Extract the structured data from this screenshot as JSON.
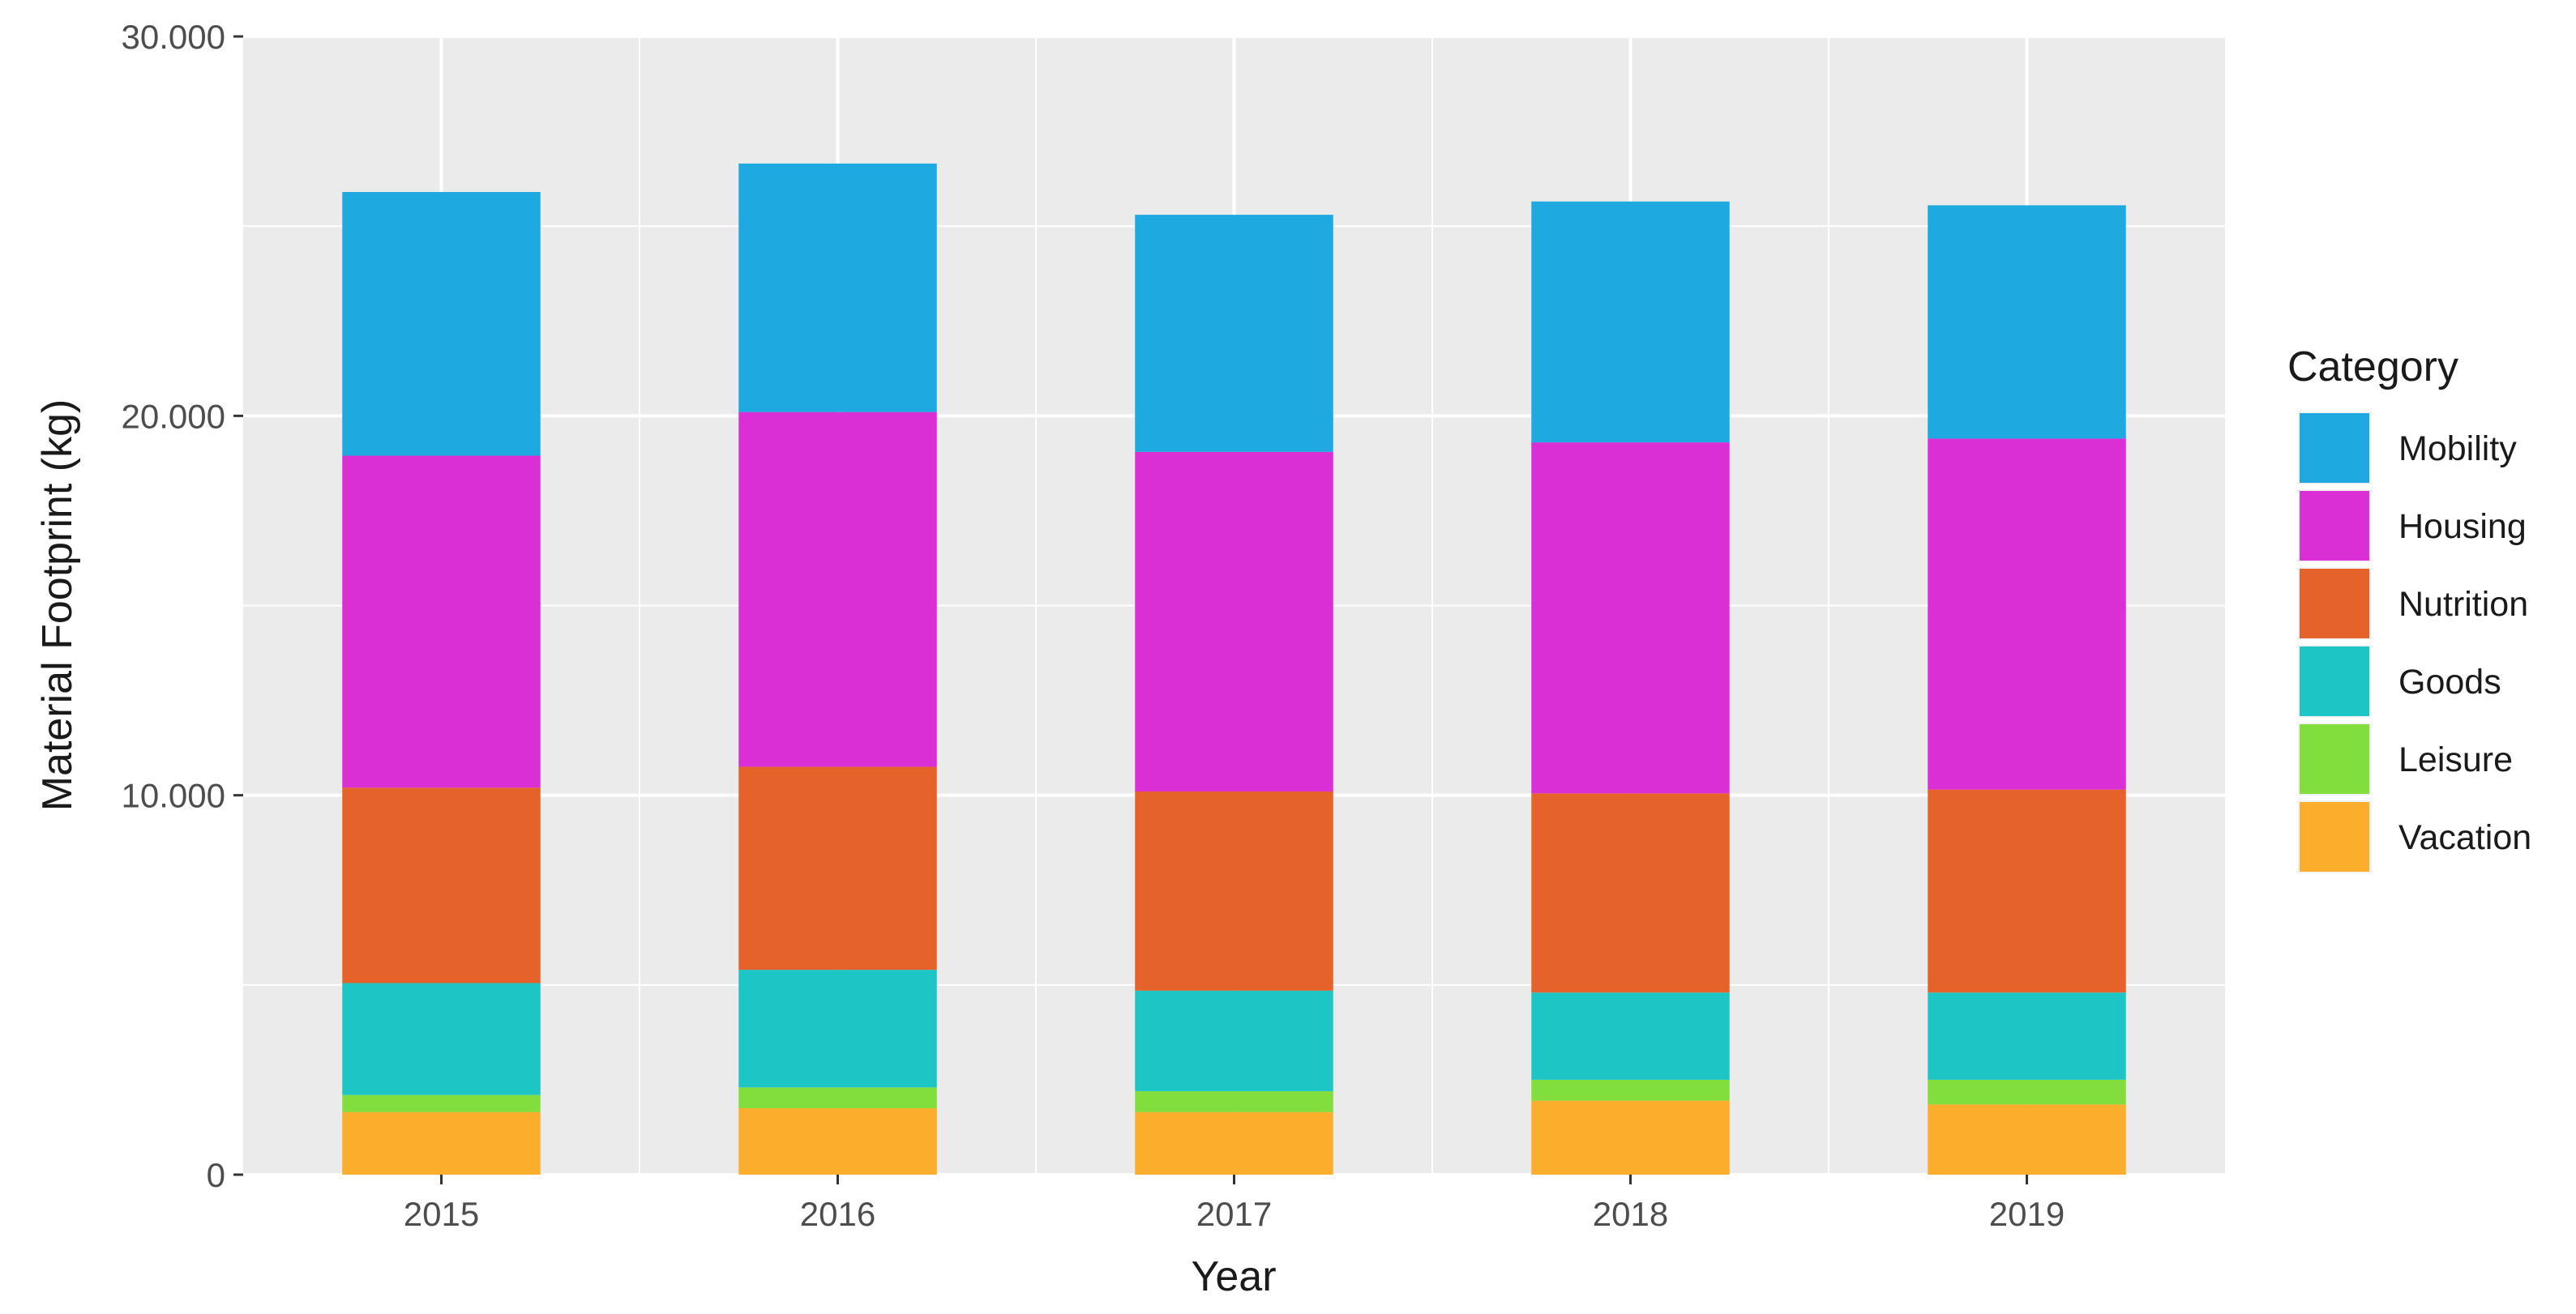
{
  "chart_data": {
    "type": "bar",
    "stacked": true,
    "title": "",
    "xlabel": "Year",
    "ylabel": "Material Footprint (kg)",
    "categories": [
      "2015",
      "2016",
      "2017",
      "2018",
      "2019"
    ],
    "ylim": [
      0,
      30000
    ],
    "yticks": [
      0,
      10000,
      20000,
      30000
    ],
    "ytick_labels": [
      "0",
      "10.000",
      "20.000",
      "30.000"
    ],
    "grid": true,
    "legend_title": "Category",
    "legend_position": "right",
    "series": [
      {
        "name": "Vacation",
        "color": "#FBAE2B",
        "values": [
          1650,
          1750,
          1650,
          1950,
          1850
        ]
      },
      {
        "name": "Leisure",
        "color": "#82DE3C",
        "values": [
          450,
          550,
          550,
          550,
          650
        ]
      },
      {
        "name": "Goods",
        "color": "#1EC5C5",
        "values": [
          2950,
          3100,
          2650,
          2300,
          2300
        ]
      },
      {
        "name": "Nutrition",
        "color": "#E5622A",
        "values": [
          5150,
          5350,
          5250,
          5250,
          5350
        ]
      },
      {
        "name": "Housing",
        "color": "#DB2FD6",
        "values": [
          8750,
          9350,
          8950,
          9250,
          9250
        ]
      },
      {
        "name": "Mobility",
        "color": "#1EA9E1",
        "values": [
          6950,
          6550,
          6250,
          6350,
          6150
        ]
      }
    ],
    "legend_order": [
      "Mobility",
      "Housing",
      "Nutrition",
      "Goods",
      "Leisure",
      "Vacation"
    ]
  }
}
